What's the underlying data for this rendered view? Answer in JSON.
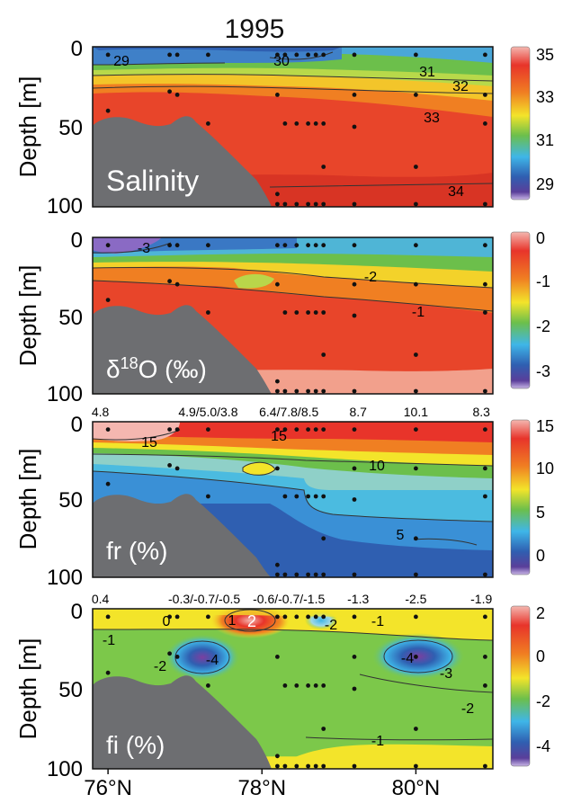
{
  "title": "1995",
  "colors": {
    "land": "#6d6e71",
    "scatter": "#111111",
    "contour": "#333333"
  },
  "x_axis": {
    "ticks": [
      {
        "value": 76,
        "label": "76°N"
      },
      {
        "value": 78,
        "label": "78°N"
      },
      {
        "value": 80,
        "label": "80°N"
      }
    ],
    "range": [
      75.8,
      81
    ]
  },
  "chart_data": [
    {
      "type": "heatmap",
      "panel": "salinity",
      "label": "Salinity",
      "ylabel": "Depth [m]",
      "ylim": [
        100,
        0
      ],
      "yticks": [
        "0",
        "50",
        "100"
      ],
      "colorbar": {
        "ticks": [
          "35",
          "33",
          "31",
          "29"
        ],
        "colors": [
          "#f4b7b0",
          "#e8342a",
          "#f07f22",
          "#f3e42a",
          "#6cbf4b",
          "#3fb6e8",
          "#2f5fb1",
          "#5a3e9a",
          "#c9b6e6"
        ]
      },
      "top_labels": [],
      "contours": [
        {
          "value": 29,
          "label": "29"
        },
        {
          "value": 30,
          "label": "30"
        },
        {
          "value": 31,
          "label": "31"
        },
        {
          "value": 32,
          "label": "32"
        },
        {
          "value": 33,
          "label": "33"
        },
        {
          "value": 34,
          "label": "34"
        }
      ]
    },
    {
      "type": "heatmap",
      "panel": "d18O",
      "label": "δ18O (‰)",
      "ylabel": "Depth [m]",
      "ylim": [
        100,
        0
      ],
      "yticks": [
        "0",
        "50",
        "100"
      ],
      "colorbar": {
        "ticks": [
          "0",
          "-1",
          "-2",
          "-3"
        ],
        "colors": [
          "#f4b7b0",
          "#e8342a",
          "#f07f22",
          "#f3e42a",
          "#6cbf4b",
          "#3fb6e8",
          "#2f5fb1",
          "#5a3e9a",
          "#c9b6e6"
        ]
      },
      "top_labels": [],
      "contours": [
        {
          "value": -3,
          "label": "-3"
        },
        {
          "value": -2,
          "label": "-2"
        },
        {
          "value": -1,
          "label": "-1"
        }
      ]
    },
    {
      "type": "heatmap",
      "panel": "fr",
      "label": "fr (%)",
      "ylabel": "Depth [m]",
      "ylim": [
        100,
        0
      ],
      "yticks": [
        "0",
        "50",
        "100"
      ],
      "colorbar": {
        "ticks": [
          "15",
          "10",
          "5",
          "0"
        ],
        "colors": [
          "#f4b7b0",
          "#e8342a",
          "#f07f22",
          "#f3e42a",
          "#6cbf4b",
          "#3fb6e8",
          "#2f5fb1",
          "#5a3e9a",
          "#c9b6e6"
        ]
      },
      "top_labels": [
        {
          "x": 75.9,
          "text": "4.8"
        },
        {
          "x": 77.3,
          "text": "4.9/5.0/3.8"
        },
        {
          "x": 78.35,
          "text": "6.4/7.8/8.5"
        },
        {
          "x": 79.25,
          "text": "8.7"
        },
        {
          "x": 80.0,
          "text": "10.1"
        },
        {
          "x": 80.85,
          "text": "8.3"
        }
      ],
      "contours": [
        {
          "value": 15,
          "label": "15"
        },
        {
          "value": 10,
          "label": "10"
        },
        {
          "value": 5,
          "label": "5"
        }
      ]
    },
    {
      "type": "heatmap",
      "panel": "fi",
      "label": "fi (%)",
      "ylabel": "Depth [m]",
      "ylim": [
        100,
        0
      ],
      "yticks": [
        "0",
        "50",
        "100"
      ],
      "colorbar": {
        "ticks": [
          "2",
          "0",
          "-2",
          "-4"
        ],
        "colors": [
          "#f4b7b0",
          "#e8342a",
          "#f07f22",
          "#f3e42a",
          "#6cbf4b",
          "#3fb6e8",
          "#2f5fb1",
          "#5a3e9a",
          "#c9b6e6"
        ]
      },
      "top_labels": [
        {
          "x": 75.9,
          "text": "0.4"
        },
        {
          "x": 77.25,
          "text": "-0.3/-0.7/-0.5"
        },
        {
          "x": 78.35,
          "text": "-0.6/-0.7/-1.5"
        },
        {
          "x": 79.25,
          "text": "-1.3"
        },
        {
          "x": 80.0,
          "text": "-2.5"
        },
        {
          "x": 80.85,
          "text": "-1.9"
        }
      ],
      "contours": [
        {
          "value": 2,
          "label": "2"
        },
        {
          "value": 1,
          "label": "1"
        },
        {
          "value": 0,
          "label": "0"
        },
        {
          "value": -1,
          "label": "-1"
        },
        {
          "value": -2,
          "label": "-2"
        },
        {
          "value": -3,
          "label": "-3"
        },
        {
          "value": -4,
          "label": "-4"
        }
      ]
    }
  ],
  "stations": [
    {
      "lat": 76.0,
      "depths": [
        5,
        40
      ]
    },
    {
      "lat": 76.8,
      "depths": [
        5,
        28
      ]
    },
    {
      "lat": 76.9,
      "depths": [
        5,
        30
      ]
    },
    {
      "lat": 77.3,
      "depths": [
        5,
        48
      ]
    },
    {
      "lat": 78.2,
      "depths": [
        5,
        30,
        92,
        100
      ]
    },
    {
      "lat": 78.3,
      "depths": [
        5,
        48,
        100
      ]
    },
    {
      "lat": 78.45,
      "depths": [
        5,
        48,
        100
      ]
    },
    {
      "lat": 78.6,
      "depths": [
        5,
        48,
        100
      ]
    },
    {
      "lat": 78.7,
      "depths": [
        5,
        48,
        100
      ]
    },
    {
      "lat": 78.8,
      "depths": [
        5,
        48,
        75,
        100
      ]
    },
    {
      "lat": 79.2,
      "depths": [
        5,
        30,
        50,
        100
      ]
    },
    {
      "lat": 80.0,
      "depths": [
        5,
        30,
        75,
        100
      ]
    },
    {
      "lat": 80.9,
      "depths": [
        5,
        30,
        48,
        100
      ]
    }
  ]
}
